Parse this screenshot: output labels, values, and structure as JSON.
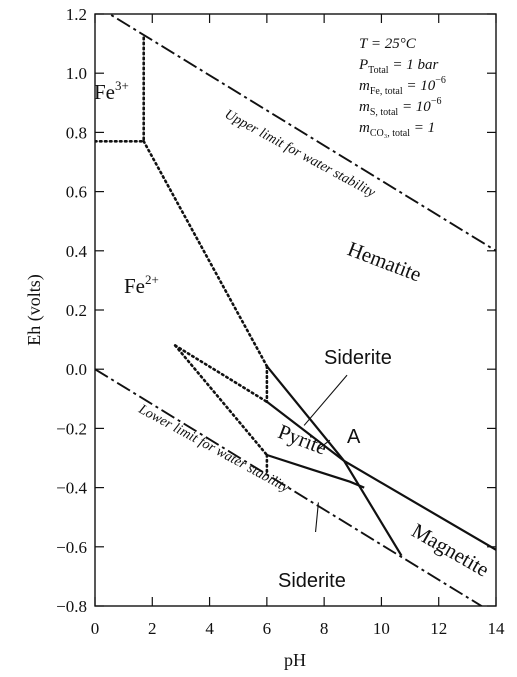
{
  "chart_data": {
    "type": "line",
    "title": "",
    "xlabel": "pH",
    "ylabel": "Eh (volts)",
    "xlim": [
      0,
      14
    ],
    "ylim": [
      -0.8,
      1.2
    ],
    "xticks": [
      "0",
      "2",
      "4",
      "6",
      "8",
      "10",
      "12",
      "14"
    ],
    "yticks": [
      "−0.8",
      "−0.6",
      "−0.4",
      "−0.2",
      "0.0",
      "0.2",
      "0.4",
      "0.6",
      "0.8",
      "1.0",
      "1.2"
    ],
    "grid": false,
    "conditions": [
      {
        "main": "T",
        "sub": "",
        "rest": " = 25°C",
        "sup": ""
      },
      {
        "main": "P",
        "sub": "Total",
        "rest": " = 1 bar",
        "sup": ""
      },
      {
        "main": "m",
        "sub": "Fe, total",
        "rest": " = 10",
        "sup": "−6"
      },
      {
        "main": "m",
        "sub": "S, total",
        "rest": " = 10",
        "sup": "−6"
      },
      {
        "main": "m",
        "sub": "CO₃, total",
        "rest": " = 1",
        "sup": ""
      }
    ],
    "regions": {
      "fe3": {
        "base": "Fe",
        "sup": "3+"
      },
      "fe2": {
        "base": "Fe",
        "sup": "2+"
      },
      "hematite": "Hematite",
      "pyrite": "Pyrite",
      "magnetite": "Magnetite",
      "siderite_upper": "Siderite",
      "siderite_lower": "Siderite",
      "point_a": "A"
    },
    "limit_labels": {
      "upper": "Upper limit for water stability",
      "lower": "Lower limit for water stability"
    },
    "series": [
      {
        "style": "dash-dot",
        "points": [
          [
            0,
            1.23
          ],
          [
            14,
            0.4
          ]
        ]
      },
      {
        "style": "dash-dot",
        "points": [
          [
            0,
            0.0
          ],
          [
            14,
            -0.83
          ]
        ]
      },
      {
        "style": "dotted",
        "points": [
          [
            0,
            0.77
          ],
          [
            1.7,
            0.77
          ]
        ]
      },
      {
        "style": "dotted",
        "points": [
          [
            1.7,
            1.12
          ],
          [
            1.7,
            0.77
          ]
        ]
      },
      {
        "style": "dotted",
        "points": [
          [
            1.7,
            0.77
          ],
          [
            6.0,
            0.01
          ]
        ]
      },
      {
        "style": "dotted",
        "points": [
          [
            6.0,
            0.01
          ],
          [
            6.0,
            -0.11
          ]
        ]
      },
      {
        "style": "dotted",
        "points": [
          [
            2.8,
            0.08
          ],
          [
            6.0,
            -0.11
          ]
        ]
      },
      {
        "style": "dotted",
        "points": [
          [
            2.8,
            0.08
          ],
          [
            6.0,
            -0.29
          ]
        ]
      },
      {
        "style": "dotted",
        "points": [
          [
            6.0,
            -0.29
          ],
          [
            6.0,
            -0.35
          ]
        ]
      },
      {
        "style": "solid",
        "points": [
          [
            6.0,
            -0.11
          ],
          [
            8.7,
            -0.31
          ],
          [
            14,
            -0.61
          ]
        ]
      },
      {
        "style": "solid",
        "points": [
          [
            6.0,
            0.01
          ],
          [
            8.7,
            -0.31
          ],
          [
            10.7,
            -0.63
          ]
        ]
      },
      {
        "style": "solid",
        "points": [
          [
            6.0,
            -0.29
          ],
          [
            7.6,
            -0.34
          ],
          [
            8.9,
            -0.38
          ],
          [
            9.4,
            -0.4
          ]
        ]
      }
    ],
    "pointers": [
      {
        "from": [
          8.8,
          -0.02
        ],
        "to": [
          7.3,
          -0.19
        ]
      },
      {
        "from": [
          8.2,
          -0.24
        ],
        "to": [
          7.8,
          -0.27
        ]
      },
      {
        "from": [
          7.8,
          -0.45
        ],
        "to": [
          7.7,
          -0.55
        ]
      }
    ]
  }
}
